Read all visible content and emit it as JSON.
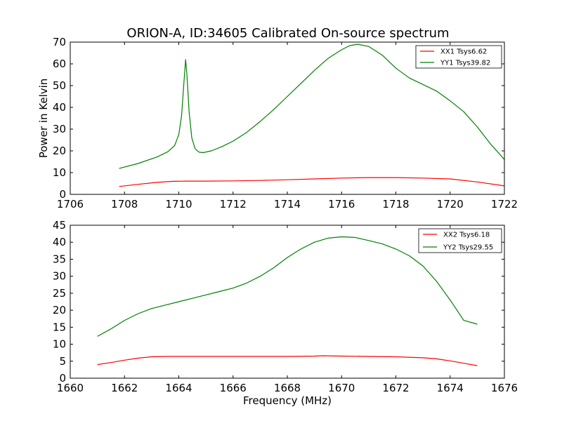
{
  "figure_title": "ORION-A, ID:34605 Calibrated On-source spectrum",
  "chart_data": [
    {
      "type": "line",
      "title": "ORION-A, ID:34605 Calibrated On-source spectrum",
      "xlabel": "",
      "ylabel": "Power in Kelvin",
      "xlim": [
        1706,
        1722
      ],
      "ylim": [
        0,
        70
      ],
      "xticks": [
        1706,
        1708,
        1710,
        1712,
        1714,
        1716,
        1718,
        1720,
        1722
      ],
      "yticks": [
        0,
        10,
        20,
        30,
        40,
        50,
        60,
        70
      ],
      "grid": false,
      "legend": "top-right",
      "series": [
        {
          "name": "XX1 Tsys6.62",
          "color": "#ff0000",
          "x": [
            1707.8,
            1708.5,
            1709.2,
            1709.8,
            1710.3,
            1711,
            1712,
            1713,
            1714,
            1715,
            1716,
            1717,
            1718,
            1719,
            1720,
            1721,
            1722
          ],
          "y": [
            3.6,
            4.6,
            5.5,
            6.0,
            6.1,
            6.1,
            6.2,
            6.4,
            6.7,
            7.1,
            7.5,
            7.7,
            7.7,
            7.5,
            7.1,
            5.7,
            3.9
          ]
        },
        {
          "name": "YY1 Tsys39.82",
          "color": "#008000",
          "x": [
            1707.8,
            1708.5,
            1709.2,
            1709.6,
            1709.85,
            1710.0,
            1710.1,
            1710.18,
            1710.25,
            1710.3,
            1710.38,
            1710.48,
            1710.6,
            1710.75,
            1710.9,
            1711.2,
            1711.6,
            1712,
            1712.5,
            1713,
            1713.5,
            1714,
            1714.5,
            1715,
            1715.5,
            1716,
            1716.3,
            1716.6,
            1717,
            1717.5,
            1718,
            1718.5,
            1719,
            1719.5,
            1720,
            1720.5,
            1721,
            1721.5,
            1722
          ],
          "y": [
            11.9,
            14.2,
            17.2,
            19.6,
            22.5,
            27.5,
            36.0,
            50.0,
            62.0,
            55.0,
            38.0,
            26.0,
            21.0,
            19.4,
            19.2,
            20.0,
            22.0,
            24.5,
            28.5,
            33.5,
            39.0,
            45.0,
            51.0,
            57.0,
            62.5,
            66.5,
            68.4,
            69.0,
            68.0,
            64.0,
            58.0,
            53.5,
            50.5,
            47.5,
            43.0,
            38.0,
            31.0,
            23.0,
            16.0
          ]
        }
      ]
    },
    {
      "type": "line",
      "title": "",
      "xlabel": "Frequency (MHz)",
      "ylabel": "",
      "xlim": [
        1660,
        1676
      ],
      "ylim": [
        0,
        45
      ],
      "xticks": [
        1660,
        1662,
        1664,
        1666,
        1668,
        1670,
        1672,
        1674,
        1676
      ],
      "yticks": [
        0,
        5,
        10,
        15,
        20,
        25,
        30,
        35,
        40,
        45
      ],
      "grid": false,
      "legend": "top-right",
      "series": [
        {
          "name": "XX2 Tsys6.18",
          "color": "#ff0000",
          "x": [
            1661,
            1661.5,
            1662,
            1662.5,
            1663,
            1663.5,
            1664,
            1665,
            1666,
            1667,
            1668,
            1669,
            1669.3,
            1670,
            1671,
            1672,
            1673,
            1673.5,
            1674,
            1674.5,
            1675
          ],
          "y": [
            4.0,
            4.6,
            5.3,
            5.9,
            6.3,
            6.4,
            6.4,
            6.4,
            6.4,
            6.4,
            6.4,
            6.5,
            6.6,
            6.5,
            6.4,
            6.3,
            6.0,
            5.7,
            5.1,
            4.4,
            3.7
          ]
        },
        {
          "name": "YY2 Tsys29.55",
          "color": "#008000",
          "x": [
            1661,
            1661.5,
            1662,
            1662.5,
            1663,
            1663.5,
            1664,
            1664.5,
            1665,
            1665.5,
            1666,
            1666.5,
            1667,
            1667.5,
            1668,
            1668.5,
            1669,
            1669.5,
            1670,
            1670.5,
            1671,
            1671.5,
            1672,
            1672.5,
            1673,
            1673.5,
            1674,
            1674.5,
            1675
          ],
          "y": [
            12.3,
            14.5,
            17.0,
            19.0,
            20.5,
            21.5,
            22.5,
            23.5,
            24.5,
            25.5,
            26.5,
            28.0,
            30.0,
            32.5,
            35.5,
            38.0,
            40.0,
            41.2,
            41.6,
            41.4,
            40.5,
            39.5,
            38.0,
            36.0,
            33.0,
            28.5,
            23.0,
            17.0,
            15.9
          ]
        }
      ]
    }
  ]
}
